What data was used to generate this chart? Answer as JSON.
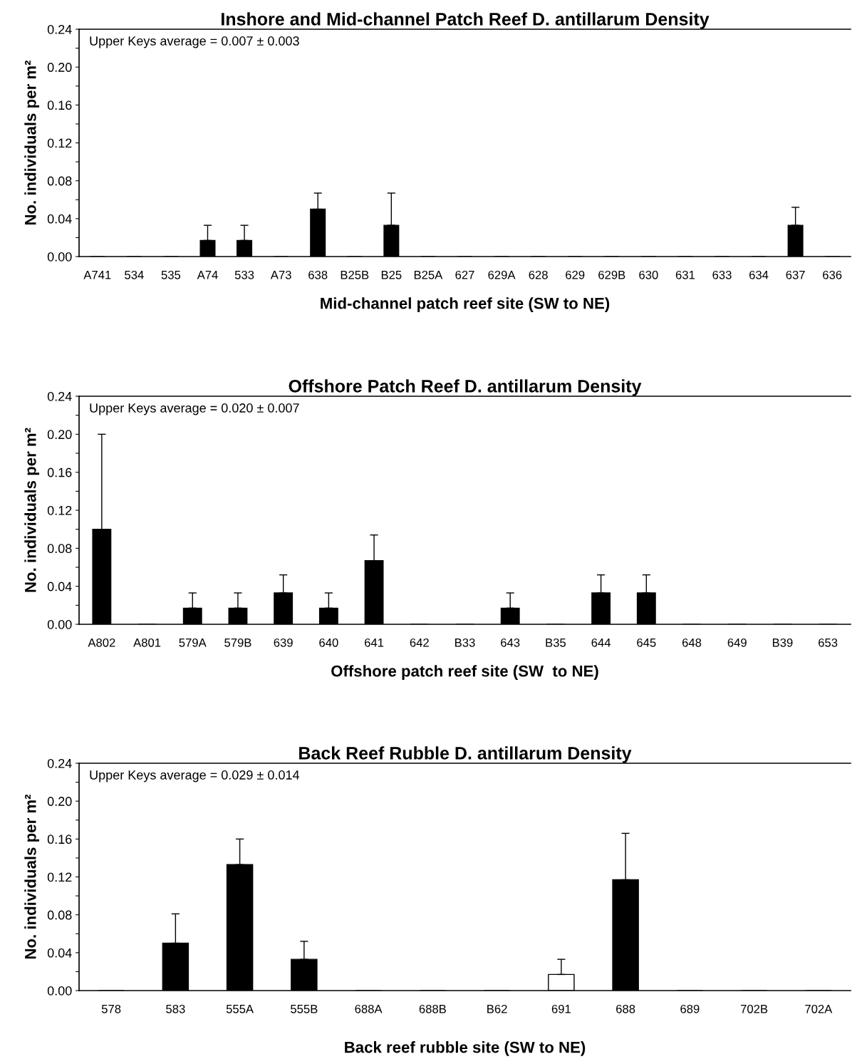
{
  "chart_data": [
    {
      "type": "bar",
      "title": "Inshore and Mid-channel Patch Reef D. antillarum Density",
      "xlabel": "Mid-channel patch reef site (SW to NE)",
      "ylabel": "No. individuals per m²",
      "categories": [
        "A741",
        "534",
        "535",
        "A74",
        "533",
        "A73",
        "638",
        "B25B",
        "B25",
        "B25A",
        "627",
        "629A",
        "628",
        "629",
        "629B",
        "630",
        "631",
        "633",
        "634",
        "637",
        "636"
      ],
      "values": [
        0,
        0,
        0,
        0.017,
        0.017,
        0,
        0.05,
        0,
        0.033,
        0,
        0,
        0,
        0,
        0,
        0,
        0,
        0,
        0,
        0,
        0.033,
        0
      ],
      "errors": [
        null,
        null,
        null,
        [
          0.017,
          0.033
        ],
        [
          0.017,
          0.033
        ],
        null,
        [
          0.05,
          0.067
        ],
        null,
        [
          0.033,
          0.067
        ],
        null,
        null,
        null,
        null,
        null,
        null,
        null,
        null,
        null,
        null,
        [
          0.033,
          0.052
        ],
        null
      ],
      "color": "#000000",
      "ylim": [
        0,
        0.24
      ],
      "yticks": [
        {
          "value": 0,
          "label": "0.00"
        },
        {
          "value": 0.02,
          "label": null
        },
        {
          "value": 0.04,
          "label": "0.04"
        },
        {
          "value": 0.06,
          "label": null
        },
        {
          "value": 0.08,
          "label": "0.08"
        },
        {
          "value": 0.1,
          "label": null
        },
        {
          "value": 0.12,
          "label": "0.12"
        },
        {
          "value": 0.14,
          "label": null
        },
        {
          "value": 0.16,
          "label": "0.16"
        },
        {
          "value": 0.18,
          "label": null
        },
        {
          "value": 0.2,
          "label": "0.20"
        },
        {
          "value": 0.22,
          "label": null
        },
        {
          "value": 0.24,
          "label": "0.24"
        }
      ],
      "annotations": [
        "Upper Keys average = 0.007 ± 0.003"
      ],
      "grid": false,
      "legend": false
    },
    {
      "type": "bar",
      "title": "Offshore Patch Reef D. antillarum Density",
      "xlabel": "Offshore patch reef site (SW  to NE)",
      "ylabel": "No. individuals per m²",
      "categories": [
        "A802",
        "A801",
        "579A",
        "579B",
        "639",
        "640",
        "641",
        "642",
        "B33",
        "643",
        "B35",
        "644",
        "645",
        "648",
        "649",
        "B39",
        "653"
      ],
      "values": [
        0.1,
        0,
        0.017,
        0.017,
        0.033,
        0.017,
        0.067,
        0,
        0,
        0.017,
        0,
        0.033,
        0.033,
        0,
        0,
        0,
        0
      ],
      "errors": [
        [
          0.1,
          0.2
        ],
        null,
        [
          0.017,
          0.033
        ],
        [
          0.017,
          0.033
        ],
        [
          0.033,
          0.052
        ],
        [
          0.017,
          0.033
        ],
        [
          0.067,
          0.094
        ],
        null,
        null,
        [
          0.017,
          0.033
        ],
        null,
        [
          0.033,
          0.052
        ],
        [
          0.033,
          0.052
        ],
        null,
        null,
        null,
        null
      ],
      "color": "#000000",
      "ylim": [
        0,
        0.24
      ],
      "yticks": [
        {
          "value": 0,
          "label": "0.00"
        },
        {
          "value": 0.02,
          "label": null
        },
        {
          "value": 0.04,
          "label": "0.04"
        },
        {
          "value": 0.06,
          "label": null
        },
        {
          "value": 0.08,
          "label": "0.08"
        },
        {
          "value": 0.1,
          "label": null
        },
        {
          "value": 0.12,
          "label": "0.12"
        },
        {
          "value": 0.14,
          "label": null
        },
        {
          "value": 0.16,
          "label": "0.16"
        },
        {
          "value": 0.18,
          "label": null
        },
        {
          "value": 0.2,
          "label": "0.20"
        },
        {
          "value": 0.22,
          "label": null
        },
        {
          "value": 0.24,
          "label": "0.24"
        }
      ],
      "annotations": [
        "Upper Keys average = 0.020 ± 0.007"
      ],
      "grid": false,
      "legend": false
    },
    {
      "type": "bar",
      "title": "Back Reef Rubble D. antillarum Density",
      "xlabel": "Back reef rubble site (SW to NE)",
      "ylabel": "No. individuals per m²",
      "categories": [
        "578",
        "583",
        "555A",
        "555B",
        "688A",
        "688B",
        "B62",
        "691",
        "688",
        "689",
        "702B",
        "702A"
      ],
      "values": [
        0,
        0.05,
        0.133,
        0.033,
        0,
        0,
        0,
        0.017,
        0.117,
        0,
        0,
        0
      ],
      "errors": [
        null,
        [
          0.05,
          0.081
        ],
        [
          0.133,
          0.16
        ],
        [
          0.033,
          0.052
        ],
        null,
        null,
        null,
        [
          0.017,
          0.033
        ],
        [
          0.117,
          0.166
        ],
        null,
        null,
        null
      ],
      "colors": [
        "#000000",
        "#000000",
        "#000000",
        "#000000",
        "#000000",
        "#000000",
        "#000000",
        "#ffffff",
        "#000000",
        "#000000",
        "#000000",
        "#000000"
      ],
      "ylim": [
        0,
        0.24
      ],
      "yticks": [
        {
          "value": 0,
          "label": "0.00"
        },
        {
          "value": 0.02,
          "label": null
        },
        {
          "value": 0.04,
          "label": "0.04"
        },
        {
          "value": 0.06,
          "label": null
        },
        {
          "value": 0.08,
          "label": "0.08"
        },
        {
          "value": 0.1,
          "label": null
        },
        {
          "value": 0.12,
          "label": "0.12"
        },
        {
          "value": 0.14,
          "label": null
        },
        {
          "value": 0.16,
          "label": "0.16"
        },
        {
          "value": 0.18,
          "label": null
        },
        {
          "value": 0.2,
          "label": "0.20"
        },
        {
          "value": 0.22,
          "label": null
        },
        {
          "value": 0.24,
          "label": "0.24"
        }
      ],
      "annotations": [
        "Upper Keys average = 0.029 ± 0.014"
      ],
      "grid": false,
      "legend": false
    }
  ]
}
